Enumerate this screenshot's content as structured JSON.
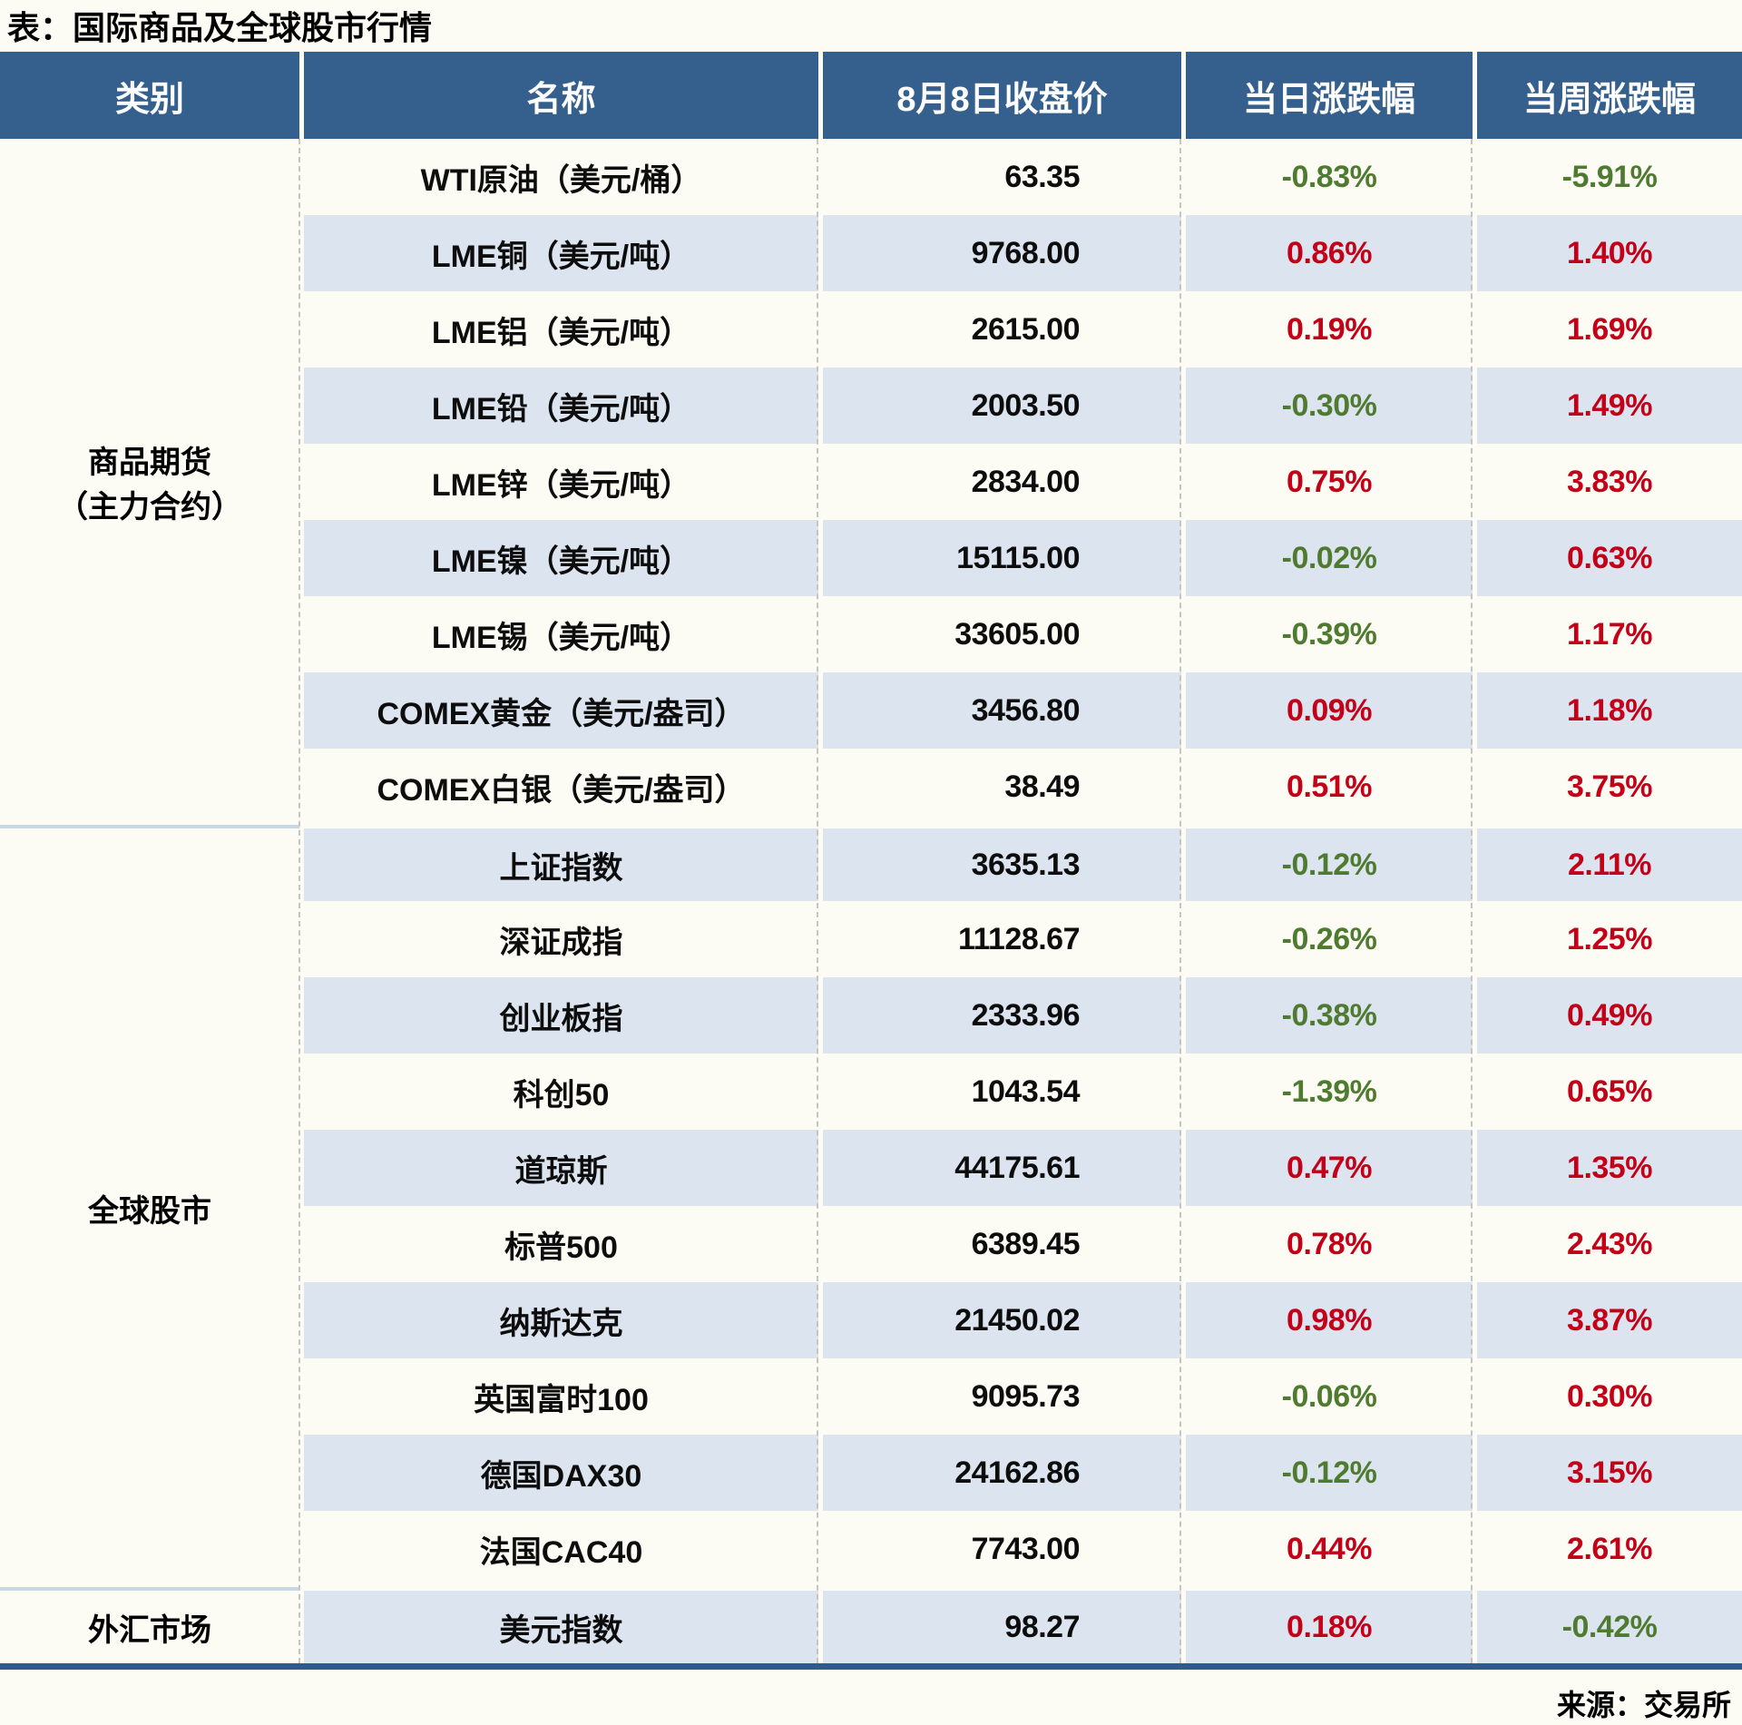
{
  "title": "表：国际商品及全球股市行情",
  "source": "来源：交易所",
  "colors": {
    "paper": "#FCFCF4",
    "header_bg": "#35608D",
    "stripe_blue": "#DCE4EF",
    "up_red": "#C30018",
    "down_green": "#4F7B31",
    "category_separator_blue": "#C7D7E8",
    "bottom_line_blue": "#2F5A8C"
  },
  "chart_data": {
    "type": "table",
    "title": "表：国际商品及全球股市行情",
    "columns": [
      "类别",
      "名称",
      "8月8日收盘价",
      "当日涨跌幅",
      "当周涨跌幅"
    ],
    "source": "来源：交易所",
    "groups": [
      {
        "label": "商品期货\n（主力合约）",
        "rows": [
          {
            "name": "WTI原油（美元/桶）",
            "close": "63.35",
            "day": "-0.83%",
            "week": "-5.91%"
          },
          {
            "name": "LME铜（美元/吨）",
            "close": "9768.00",
            "day": "0.86%",
            "week": "1.40%"
          },
          {
            "name": "LME铝（美元/吨）",
            "close": "2615.00",
            "day": "0.19%",
            "week": "1.69%"
          },
          {
            "name": "LME铅（美元/吨）",
            "close": "2003.50",
            "day": "-0.30%",
            "week": "1.49%"
          },
          {
            "name": "LME锌（美元/吨）",
            "close": "2834.00",
            "day": "0.75%",
            "week": "3.83%"
          },
          {
            "name": "LME镍（美元/吨）",
            "close": "15115.00",
            "day": "-0.02%",
            "week": "0.63%"
          },
          {
            "name": "LME锡（美元/吨）",
            "close": "33605.00",
            "day": "-0.39%",
            "week": "1.17%"
          },
          {
            "name": "COMEX黄金（美元/盎司）",
            "close": "3456.80",
            "day": "0.09%",
            "week": "1.18%"
          },
          {
            "name": "COMEX白银（美元/盎司）",
            "close": "38.49",
            "day": "0.51%",
            "week": "3.75%"
          }
        ]
      },
      {
        "label": "全球股市",
        "rows": [
          {
            "name": "上证指数",
            "close": "3635.13",
            "day": "-0.12%",
            "week": "2.11%"
          },
          {
            "name": "深证成指",
            "close": "11128.67",
            "day": "-0.26%",
            "week": "1.25%"
          },
          {
            "name": "创业板指",
            "close": "2333.96",
            "day": "-0.38%",
            "week": "0.49%"
          },
          {
            "name": "科创50",
            "close": "1043.54",
            "day": "-1.39%",
            "week": "0.65%"
          },
          {
            "name": "道琼斯",
            "close": "44175.61",
            "day": "0.47%",
            "week": "1.35%"
          },
          {
            "name": "标普500",
            "close": "6389.45",
            "day": "0.78%",
            "week": "2.43%"
          },
          {
            "name": "纳斯达克",
            "close": "21450.02",
            "day": "0.98%",
            "week": "3.87%"
          },
          {
            "name": "英国富时100",
            "close": "9095.73",
            "day": "-0.06%",
            "week": "0.30%"
          },
          {
            "name": "德国DAX30",
            "close": "24162.86",
            "day": "-0.12%",
            "week": "3.15%"
          },
          {
            "name": "法国CAC40",
            "close": "7743.00",
            "day": "0.44%",
            "week": "2.61%"
          }
        ]
      },
      {
        "label": "外汇市场",
        "rows": [
          {
            "name": "美元指数",
            "close": "98.27",
            "day": "0.18%",
            "week": "-0.42%"
          }
        ]
      }
    ]
  }
}
